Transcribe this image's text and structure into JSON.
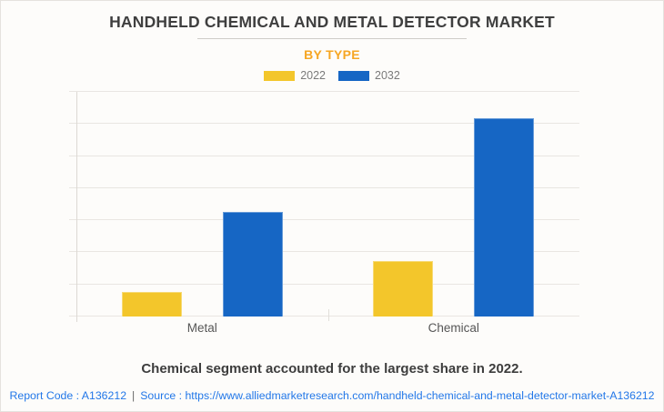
{
  "header": {
    "title": "HANDHELD CHEMICAL AND METAL DETECTOR MARKET",
    "subtitle": "BY TYPE"
  },
  "chart_data": {
    "type": "bar",
    "title": "Handheld Chemical and Metal Detector Market by Type",
    "categories": [
      "Metal",
      "Chemical"
    ],
    "series": [
      {
        "name": "2022",
        "color": "#F3C62B",
        "values": [
          0.77,
          1.73
        ]
      },
      {
        "name": "2032",
        "color": "#1666C4",
        "values": [
          3.27,
          6.18
        ]
      }
    ],
    "xlabel": "",
    "ylabel": "",
    "ylim": [
      0,
      7
    ],
    "y_ticks_labeled": false,
    "gridline_count": 8,
    "grid": true,
    "legend_position": "top"
  },
  "footer": {
    "note": "Chemical segment accounted for the largest share in 2022.",
    "report_code_label": "Report Code : A136212",
    "separator": "|",
    "source_label": "Source :",
    "source_url": "https://www.alliedmarketresearch.com/handheld-chemical-and-metal-detector-market-A136212"
  },
  "colors": {
    "subtitle_orange": "#F6A623",
    "bar_yellow": "#F3C62B",
    "bar_blue": "#1666C4",
    "link_blue": "#2277E8",
    "title_text": "#3F3F3F",
    "gridline": "#E9E6E2"
  }
}
